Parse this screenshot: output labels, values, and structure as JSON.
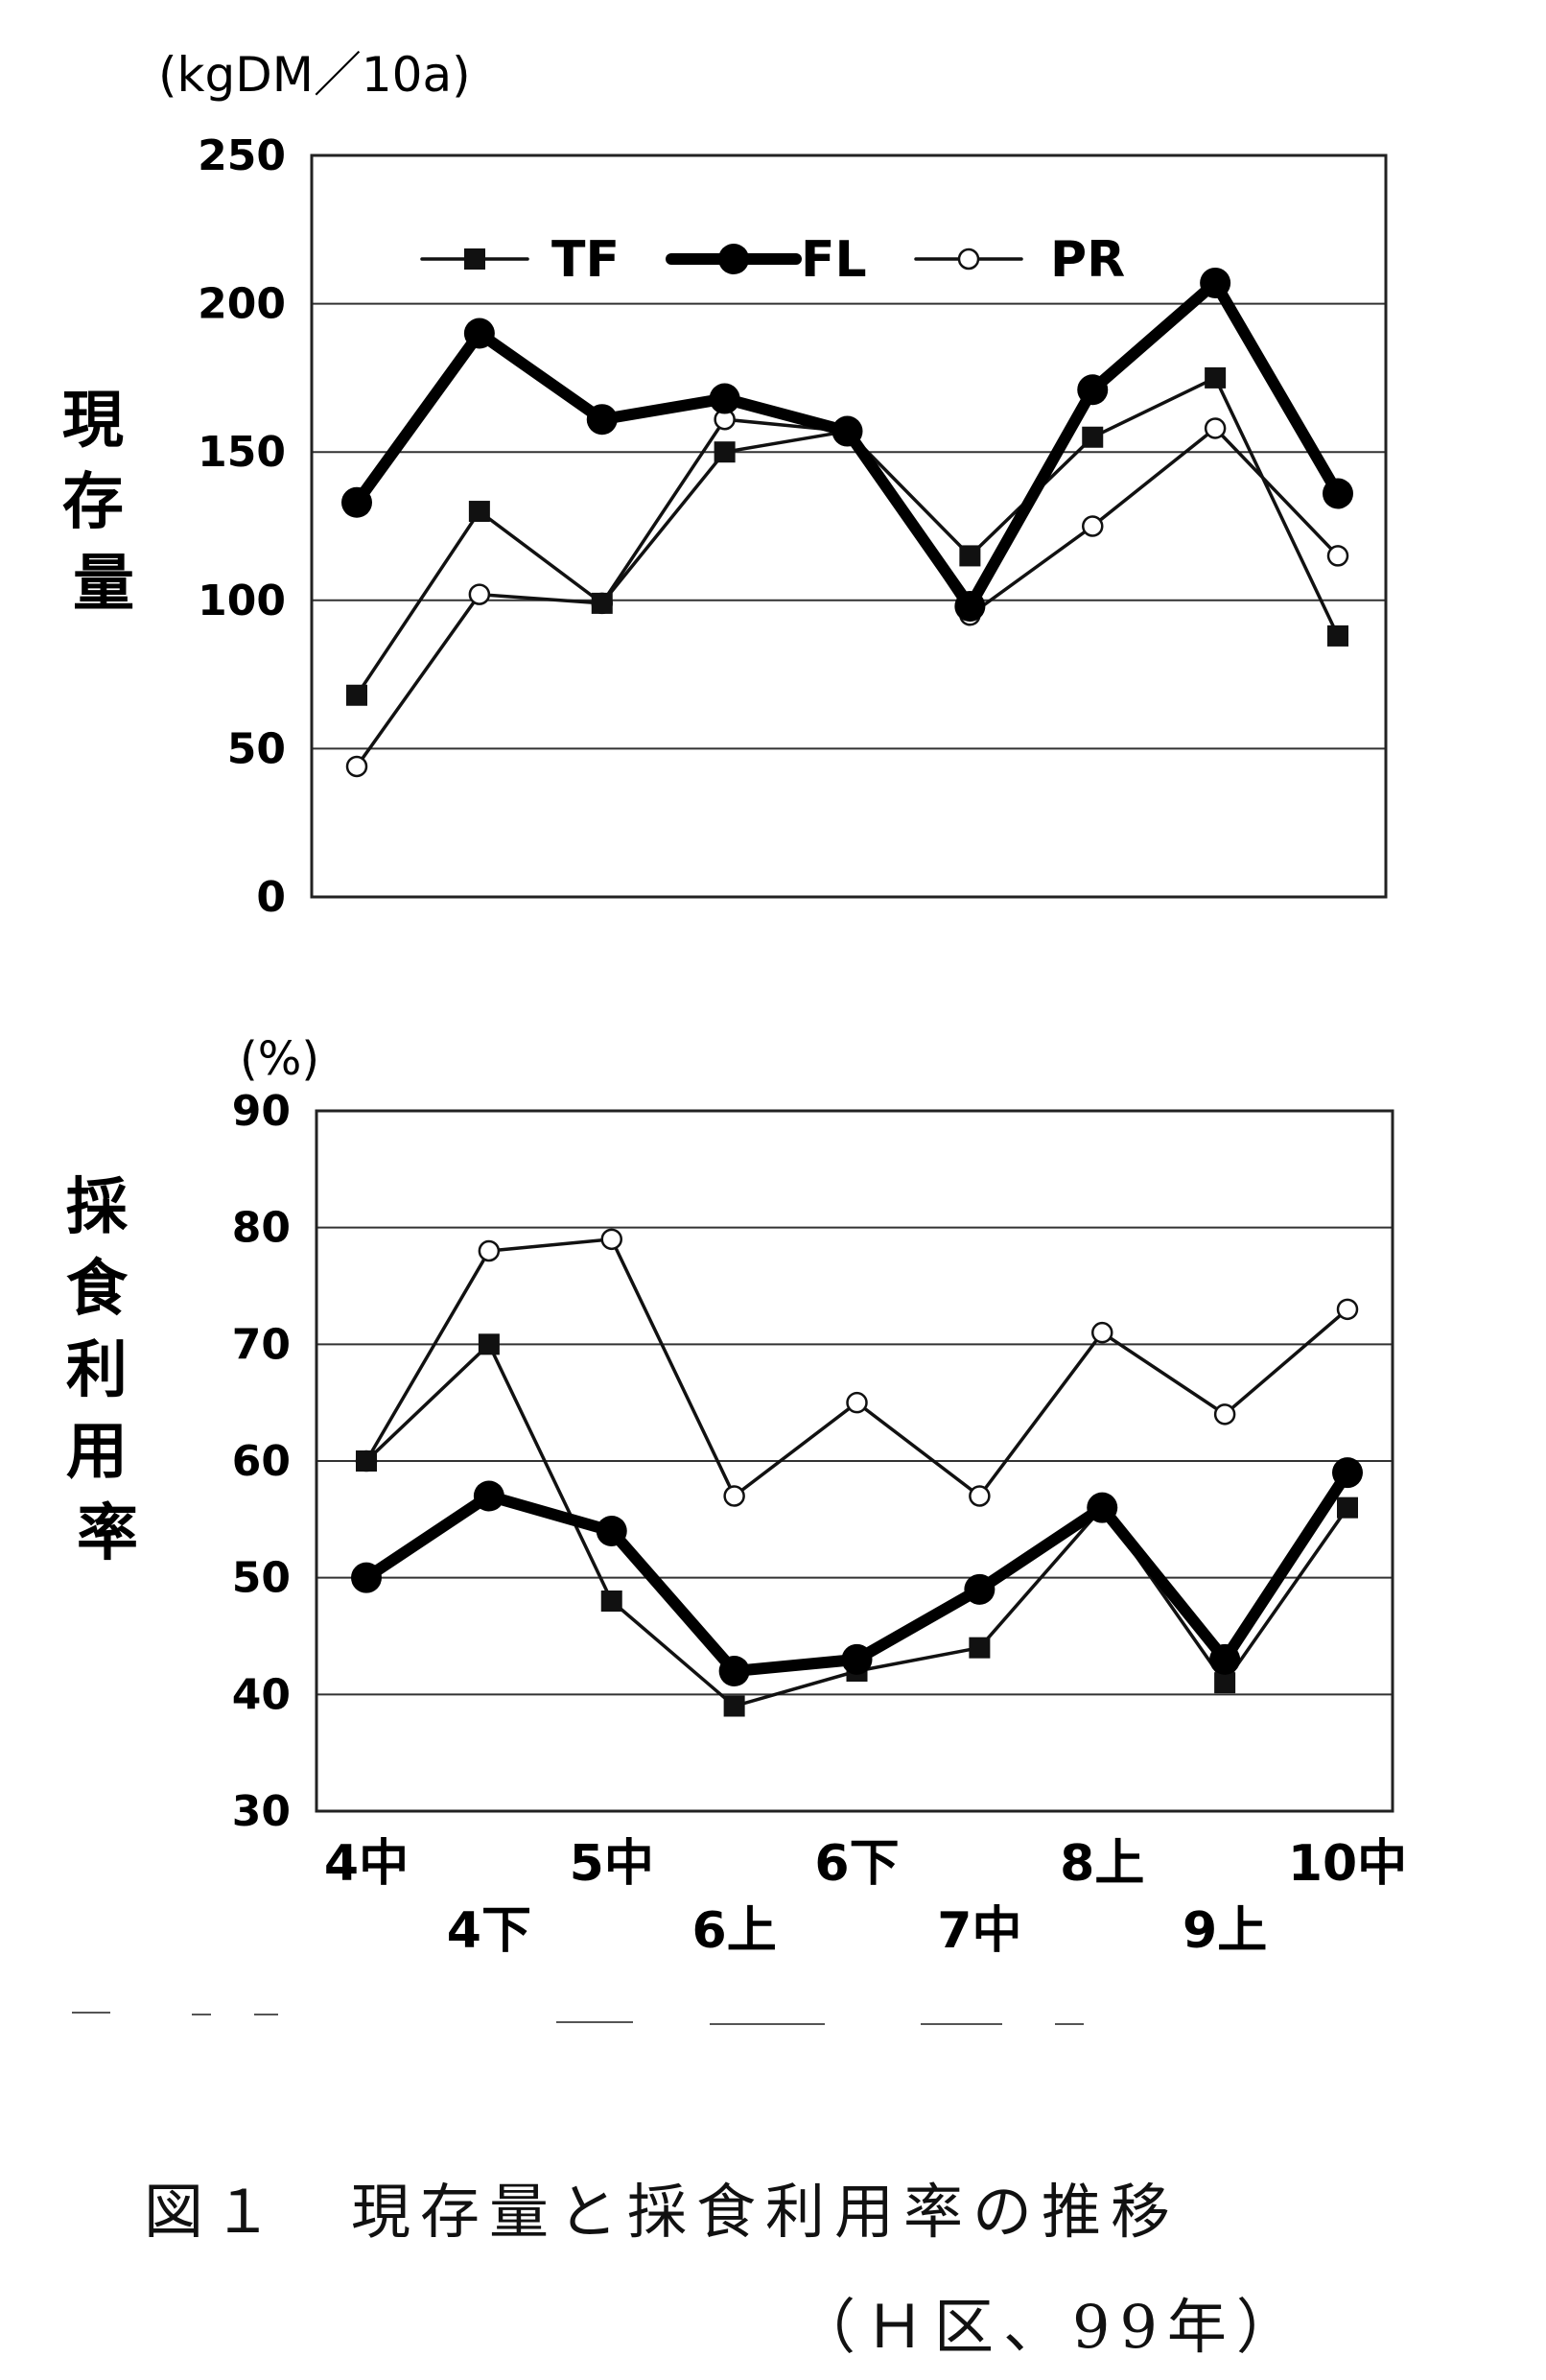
{
  "chart_data": [
    {
      "type": "line",
      "title": "",
      "unit_label": "(kgDM／10a)",
      "ylabel": "現存量",
      "xlabel": "",
      "ylim": [
        0,
        250
      ],
      "yticks": [
        0,
        50,
        100,
        150,
        200,
        250
      ],
      "grid": true,
      "legend_position": "top",
      "categories": [
        "4中",
        "4下",
        "5中",
        "6上",
        "6下",
        "7中",
        "8上",
        "9上",
        "10中"
      ],
      "series": [
        {
          "name": "TF",
          "marker": "square",
          "values": [
            68,
            130,
            99,
            150,
            157,
            115,
            155,
            175,
            88
          ]
        },
        {
          "name": "FL",
          "marker": "filled-circle",
          "values": [
            133,
            190,
            161,
            168,
            157,
            98,
            171,
            207,
            136
          ]
        },
        {
          "name": "PR",
          "marker": "open-circle",
          "values": [
            44,
            102,
            99,
            161,
            157,
            95,
            125,
            158,
            115
          ]
        }
      ]
    },
    {
      "type": "line",
      "title": "",
      "unit_label": "(%)",
      "ylabel": "採食利用率",
      "xlabel": "",
      "ylim": [
        30,
        90
      ],
      "yticks": [
        30,
        40,
        50,
        60,
        70,
        80,
        90
      ],
      "grid": true,
      "categories": [
        "4中",
        "4下",
        "5中",
        "6上",
        "6下",
        "7中",
        "8上",
        "9上",
        "10中"
      ],
      "series": [
        {
          "name": "TF",
          "marker": "square",
          "values": [
            60,
            70,
            48,
            39,
            42,
            44,
            56,
            41,
            56
          ]
        },
        {
          "name": "FL",
          "marker": "filled-circle",
          "values": [
            50,
            57,
            54,
            42,
            43,
            49,
            56,
            43,
            59
          ]
        },
        {
          "name": "PR",
          "marker": "open-circle",
          "values": [
            60,
            78,
            79,
            57,
            65,
            57,
            71,
            64,
            73
          ]
        }
      ]
    }
  ],
  "caption": {
    "title": "図１　現存量と採食利用率の推移",
    "subtitle": "（Ｈ区、99年）"
  }
}
